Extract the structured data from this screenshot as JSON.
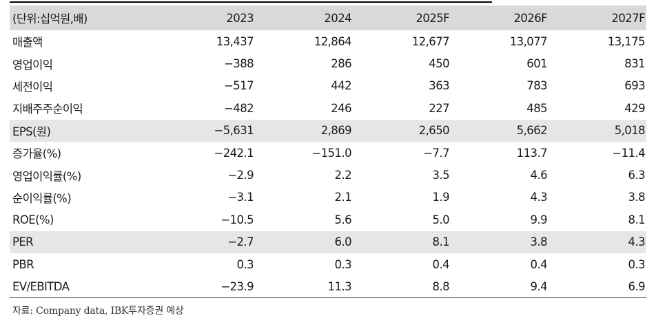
{
  "table": {
    "header": [
      "(단위:십억원,배)",
      "2023",
      "2024",
      "2025F",
      "2026F",
      "2027F"
    ],
    "rows": [
      {
        "label": "매출액",
        "values": [
          "13,437",
          "12,864",
          "12,677",
          "13,077",
          "13,175"
        ],
        "shaded": false
      },
      {
        "label": "영업이익",
        "values": [
          "−388",
          "286",
          "450",
          "601",
          "831"
        ],
        "shaded": false
      },
      {
        "label": "세전이익",
        "values": [
          "−517",
          "442",
          "363",
          "783",
          "693"
        ],
        "shaded": false
      },
      {
        "label": "지배주주순이익",
        "values": [
          "−482",
          "246",
          "227",
          "485",
          "429"
        ],
        "shaded": false
      },
      {
        "label": "EPS(원)",
        "values": [
          "−5,631",
          "2,869",
          "2,650",
          "5,662",
          "5,018"
        ],
        "shaded": true
      },
      {
        "label": "증가율(%)",
        "values": [
          "−242.1",
          "−151.0",
          "−7.7",
          "113.7",
          "−11.4"
        ],
        "shaded": false
      },
      {
        "label": "영업이익률(%)",
        "values": [
          "−2.9",
          "2.2",
          "3.5",
          "4.6",
          "6.3"
        ],
        "shaded": false
      },
      {
        "label": "순이익률(%)",
        "values": [
          "−3.1",
          "2.1",
          "1.9",
          "4.3",
          "3.8"
        ],
        "shaded": false
      },
      {
        "label": "ROE(%)",
        "values": [
          "−10.5",
          "5.6",
          "5.0",
          "9.9",
          "8.1"
        ],
        "shaded": false
      },
      {
        "label": "PER",
        "values": [
          "−2.7",
          "6.0",
          "8.1",
          "3.8",
          "4.3"
        ],
        "shaded": true
      },
      {
        "label": "PBR",
        "values": [
          "0.3",
          "0.3",
          "0.4",
          "0.4",
          "0.3"
        ],
        "shaded": false
      },
      {
        "label": "EV/EBITDA",
        "values": [
          "−23.9",
          "11.3",
          "8.8",
          "9.4",
          "6.9"
        ],
        "shaded": false
      }
    ]
  },
  "source": "자료: Company data, IBK투자증권 예상"
}
